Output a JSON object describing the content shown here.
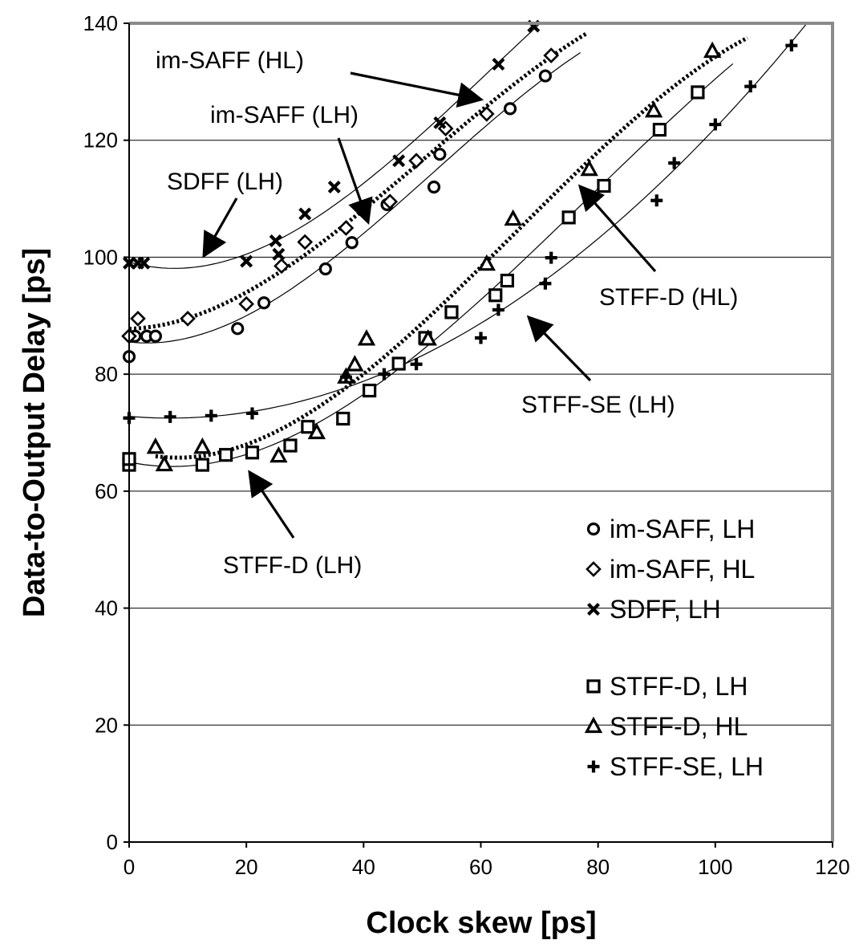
{
  "chart_data": {
    "type": "scatter",
    "title": "",
    "xlabel": "Clock skew [ps]",
    "ylabel": "Data-to-Output Delay [ps]",
    "xlim": [
      0,
      120
    ],
    "ylim": [
      0,
      140
    ],
    "xticks": [
      0,
      20,
      40,
      60,
      80,
      100,
      120
    ],
    "yticks": [
      0,
      20,
      40,
      60,
      80,
      100,
      120,
      140
    ],
    "xtick_labels": [
      "0",
      "20",
      "40",
      "60",
      "80",
      "100",
      "120"
    ],
    "ytick_labels": [
      "0",
      "20",
      "40",
      "60",
      "80",
      "100",
      "120",
      "140"
    ],
    "grid": "horizontal",
    "legend_position": "bottom-right",
    "series": [
      {
        "name": "im-SAFF, LH",
        "marker": "circle",
        "fit_line": "solid",
        "points": [
          [
            0,
            83
          ],
          [
            1,
            86.5
          ],
          [
            3,
            86.5
          ],
          [
            4.5,
            86.5
          ],
          [
            18.5,
            87.8
          ],
          [
            23,
            92.2
          ],
          [
            33.5,
            98
          ],
          [
            38,
            102.5
          ],
          [
            44,
            109
          ],
          [
            52,
            112
          ],
          [
            53,
            117.6
          ],
          [
            65,
            125.4
          ],
          [
            71,
            131
          ]
        ]
      },
      {
        "name": "im-SAFF, HL",
        "marker": "diamond",
        "fit_line": "dotted",
        "points": [
          [
            0,
            86.5
          ],
          [
            1.5,
            89.5
          ],
          [
            10,
            89.5
          ],
          [
            20,
            92
          ],
          [
            26,
            98.5
          ],
          [
            30,
            102.6
          ],
          [
            37,
            105
          ],
          [
            44.5,
            109.5
          ],
          [
            49,
            116.5
          ],
          [
            54,
            122
          ],
          [
            61,
            124.5
          ],
          [
            72,
            134.5
          ]
        ]
      },
      {
        "name": "SDFF, LH",
        "marker": "x",
        "fit_line": "solid",
        "points": [
          [
            0,
            99
          ],
          [
            1.5,
            99
          ],
          [
            2.5,
            99
          ],
          [
            20,
            99.3
          ],
          [
            25,
            102.8
          ],
          [
            25.5,
            100.5
          ],
          [
            30,
            107.4
          ],
          [
            35,
            112
          ],
          [
            46,
            116.5
          ],
          [
            53,
            123
          ],
          [
            63,
            133
          ],
          [
            69,
            139.5
          ]
        ]
      },
      {
        "name": "STFF-D, LH",
        "marker": "square",
        "fit_line": "solid",
        "points": [
          [
            0,
            64.5
          ],
          [
            0,
            65.5
          ],
          [
            12.5,
            64.5
          ],
          [
            16.5,
            66.2
          ],
          [
            21,
            66.6
          ],
          [
            27.5,
            67.8
          ],
          [
            30.5,
            71
          ],
          [
            36.5,
            72.4
          ],
          [
            41,
            77.2
          ],
          [
            46,
            81.8
          ],
          [
            50.5,
            86.2
          ],
          [
            55,
            90.6
          ],
          [
            62.5,
            93.5
          ],
          [
            64.5,
            96
          ],
          [
            75,
            106.8
          ],
          [
            81,
            112.2
          ],
          [
            90.5,
            121.8
          ],
          [
            97,
            128.2
          ]
        ]
      },
      {
        "name": "STFF-D, HL",
        "marker": "triangle",
        "fit_line": "dotted",
        "points": [
          [
            4.5,
            67.5
          ],
          [
            6,
            64.5
          ],
          [
            12.5,
            67.5
          ],
          [
            25.5,
            66
          ],
          [
            32,
            70
          ],
          [
            37,
            79.5
          ],
          [
            38.5,
            81.6
          ],
          [
            40.5,
            86
          ],
          [
            51,
            86
          ],
          [
            61,
            98.8
          ],
          [
            65.5,
            106.5
          ],
          [
            78.5,
            115
          ],
          [
            89.5,
            125
          ],
          [
            99.5,
            135.2
          ]
        ]
      },
      {
        "name": "STFF-SE, LH",
        "marker": "plus",
        "fit_line": "solid",
        "points": [
          [
            0,
            72.5
          ],
          [
            7,
            72.7
          ],
          [
            14,
            72.9
          ],
          [
            21,
            73.3
          ],
          [
            37,
            79.5
          ],
          [
            43.5,
            80
          ],
          [
            49,
            81.7
          ],
          [
            60,
            86.2
          ],
          [
            63,
            91
          ],
          [
            71,
            95.5
          ],
          [
            72,
            99.9
          ],
          [
            90,
            109.7
          ],
          [
            93,
            116.1
          ],
          [
            100,
            122.7
          ],
          [
            106,
            129.2
          ],
          [
            113,
            136.2
          ]
        ]
      }
    ],
    "annotations": [
      {
        "text": "im-SAFF (HL)"
      },
      {
        "text": "im-SAFF (LH)"
      },
      {
        "text": "SDFF (LH)"
      },
      {
        "text": "STFF-D (HL)"
      },
      {
        "text": "STFF-SE (LH)"
      },
      {
        "text": "STFF-D (LH)"
      }
    ]
  }
}
